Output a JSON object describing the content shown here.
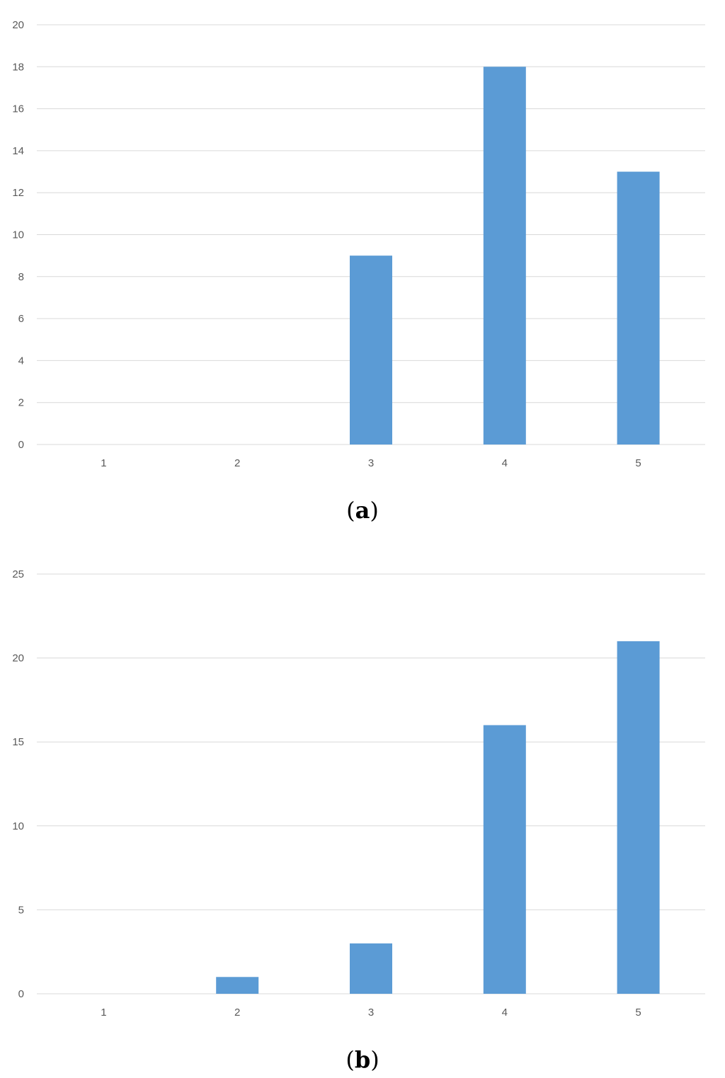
{
  "colors": {
    "bar": "#5b9bd5",
    "grid": "#d9d9d9",
    "tick": "#595959"
  },
  "chart_data": [
    {
      "type": "bar",
      "categories": [
        "1",
        "2",
        "3",
        "4",
        "5"
      ],
      "values": [
        0,
        0,
        9,
        18,
        13
      ],
      "ylim": [
        0,
        20
      ],
      "yticks": [
        0,
        2,
        4,
        6,
        8,
        10,
        12,
        14,
        16,
        18,
        20
      ],
      "grid": true,
      "caption": {
        "open": "(",
        "letter": "a",
        "close": ")"
      }
    },
    {
      "type": "bar",
      "categories": [
        "1",
        "2",
        "3",
        "4",
        "5"
      ],
      "values": [
        0,
        1,
        3,
        16,
        21
      ],
      "ylim": [
        0,
        25
      ],
      "yticks": [
        0,
        5,
        10,
        15,
        20,
        25
      ],
      "grid": true,
      "caption": {
        "open": "(",
        "letter": "b",
        "close": ")"
      }
    }
  ]
}
